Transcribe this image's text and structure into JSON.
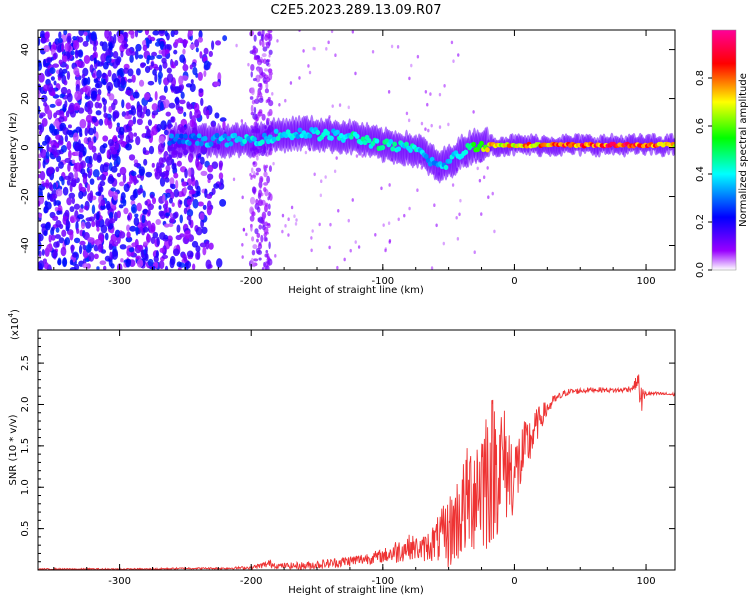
{
  "title": "C2E5.2023.289.13.09.R07",
  "chart_data": [
    {
      "type": "heatmap",
      "xlabel": "Height of straight line (km)",
      "ylabel": "Frequency (Hz)",
      "xlim": [
        -362,
        122
      ],
      "ylim": [
        -50,
        48
      ],
      "x_ticks": [
        -300,
        -200,
        -100,
        0,
        100
      ],
      "x_tick_labels": [
        "-300",
        "-200",
        "-100",
        "0",
        "100"
      ],
      "y_ticks": [
        -40,
        -20,
        0,
        20,
        40
      ],
      "y_tick_labels": [
        "-40",
        "-20",
        "0",
        "20",
        "40"
      ],
      "colorbar": {
        "label": "Normalized spectral amplitude",
        "range": [
          0,
          1
        ],
        "ticks": [
          0,
          0.2,
          0.4,
          0.6,
          0.8
        ],
        "tick_labels": [
          "0.0",
          "0.2",
          "0.4",
          "0.6",
          "0.8"
        ],
        "colors": [
          "#ffffff",
          "#9900ff",
          "#0000ff",
          "#00ffff",
          "#00ff00",
          "#ffff00",
          "#ff0000",
          "#ff0099"
        ]
      },
      "noise_region": [
        -362,
        -215
      ],
      "noise_band": [
        -200,
        -185
      ],
      "ridge": {
        "x": [
          -262,
          -240,
          -220,
          -200,
          -180,
          -160,
          -140,
          -120,
          -100,
          -85,
          -70,
          -58,
          -50,
          -40,
          -30,
          -20,
          0,
          40,
          80,
          100,
          122
        ],
        "y": [
          3,
          3,
          3,
          3,
          5,
          6,
          5,
          4,
          1,
          0,
          -2,
          -8,
          -6,
          -2,
          1,
          1,
          1,
          1,
          1,
          1,
          1
        ],
        "amplitude": [
          0.3,
          0.35,
          0.35,
          0.4,
          0.4,
          0.4,
          0.4,
          0.45,
          0.45,
          0.45,
          0.4,
          0.35,
          0.4,
          0.45,
          0.55,
          0.75,
          0.75,
          0.85,
          0.9,
          0.85,
          0.75
        ]
      }
    },
    {
      "type": "line",
      "xlabel": "Height of straight line (km)",
      "ylabel": "SNR (10 * v/v)",
      "y_multiplier_label": "(x10",
      "y_multiplier_exp": "4",
      "xlim": [
        -362,
        122
      ],
      "ylim": [
        0,
        2.9
      ],
      "x_ticks": [
        -300,
        -200,
        -100,
        0,
        100
      ],
      "x_tick_labels": [
        "-300",
        "-200",
        "-100",
        "0",
        "100"
      ],
      "y_ticks": [
        0.5,
        1.0,
        1.5,
        2.0,
        2.5
      ],
      "y_tick_labels": [
        "0.5",
        "1.0",
        "1.5",
        "2.0",
        "2.5"
      ],
      "color": "#ee3333",
      "series": [
        {
          "x": [
            -362,
            -320,
            -280,
            -250,
            -220,
            -200,
            -190,
            -186,
            -180,
            -160,
            -140,
            -120,
            -100,
            -90,
            -80,
            -70,
            -60,
            -50,
            -40,
            -30,
            -20,
            -10,
            0,
            10,
            20,
            30,
            40,
            60,
            80,
            90,
            94,
            96,
            100,
            110,
            122
          ],
          "y": [
            0.01,
            0.01,
            0.01,
            0.02,
            0.02,
            0.03,
            0.06,
            0.08,
            0.05,
            0.05,
            0.08,
            0.12,
            0.17,
            0.22,
            0.28,
            0.25,
            0.35,
            0.45,
            0.7,
            1.0,
            1.2,
            1.3,
            1.15,
            1.5,
            1.85,
            2.05,
            2.15,
            2.18,
            2.17,
            2.2,
            2.3,
            2.05,
            2.13,
            2.13,
            2.12
          ],
          "spread": [
            0.01,
            0.01,
            0.01,
            0.01,
            0.01,
            0.02,
            0.04,
            0.05,
            0.03,
            0.05,
            0.06,
            0.07,
            0.08,
            0.15,
            0.15,
            0.15,
            0.25,
            0.45,
            0.6,
            0.8,
            1.0,
            0.8,
            0.5,
            0.35,
            0.15,
            0.06,
            0.04,
            0.03,
            0.03,
            0.04,
            0.1,
            0.2,
            0.03,
            0.02,
            0.02
          ]
        }
      ]
    }
  ]
}
